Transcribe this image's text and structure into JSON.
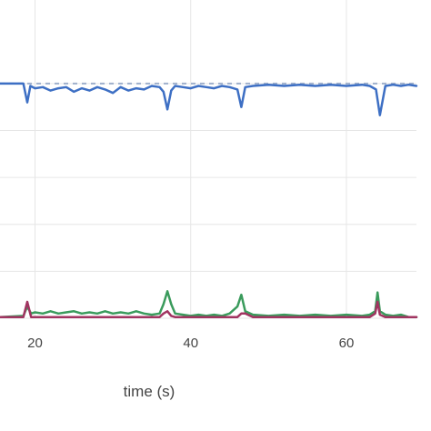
{
  "chart_data": {
    "type": "line",
    "title": "",
    "xlabel": "time (s)",
    "ylabel": "",
    "xlim": [
      15.5,
      69
    ],
    "ylim": [
      0,
      1.05
    ],
    "x_ticks": [
      20,
      40,
      60
    ],
    "x_tick_labels": [
      "20",
      "40",
      "60"
    ],
    "y_gridlines": [
      0,
      0.2,
      0.4,
      0.6,
      0.8,
      1.0
    ],
    "grid": true,
    "legend": "none",
    "reference_line": {
      "y": 1.0,
      "color": "#9fb0cc",
      "style": "dashed"
    },
    "series": [
      {
        "color": "#3d6fc4",
        "x": [
          15.5,
          18.5,
          19.0,
          19.4,
          20.0,
          21.0,
          22.0,
          23.0,
          24.0,
          25.0,
          26.0,
          27.0,
          28.0,
          29.0,
          30.0,
          31.0,
          32.0,
          33.0,
          34.0,
          35.0,
          36.0,
          36.5,
          37.0,
          37.5,
          38.0,
          39.0,
          40.0,
          41.0,
          42.0,
          43.0,
          44.0,
          45.0,
          46.0,
          46.5,
          47.0,
          48.0,
          50.0,
          52.0,
          54.0,
          56.0,
          58.0,
          60.0,
          62.0,
          63.0,
          63.8,
          64.3,
          65.0,
          66.0,
          67.0,
          68.0,
          69.0
        ],
        "y": [
          1.0,
          1.0,
          0.92,
          0.99,
          0.98,
          0.985,
          0.97,
          0.98,
          0.985,
          0.965,
          0.98,
          0.97,
          0.985,
          0.975,
          0.96,
          0.985,
          0.97,
          0.98,
          0.975,
          0.99,
          0.985,
          0.965,
          0.89,
          0.97,
          0.99,
          0.985,
          0.98,
          0.99,
          0.985,
          0.98,
          0.99,
          0.985,
          0.975,
          0.9,
          0.985,
          0.99,
          0.995,
          0.99,
          0.995,
          0.99,
          0.995,
          0.99,
          0.995,
          0.99,
          0.975,
          0.865,
          0.99,
          0.995,
          0.99,
          0.995,
          0.99
        ]
      },
      {
        "color": "#3a9b5c",
        "x": [
          15.5,
          18.5,
          19.0,
          19.5,
          20.0,
          21.0,
          22.0,
          23.0,
          24.0,
          25.0,
          26.0,
          27.0,
          28.0,
          29.0,
          30.0,
          31.0,
          32.0,
          33.0,
          34.0,
          35.0,
          36.0,
          36.5,
          37.0,
          37.5,
          38.0,
          39.0,
          40.0,
          41.0,
          42.0,
          43.0,
          44.0,
          45.0,
          46.0,
          46.5,
          47.0,
          48.0,
          50.0,
          52.0,
          54.0,
          56.0,
          58.0,
          60.0,
          62.0,
          63.0,
          63.7,
          64.0,
          64.3,
          65.0,
          66.0,
          67.0,
          68.0,
          69.0
        ],
        "y": [
          0.005,
          0.01,
          0.05,
          0.02,
          0.025,
          0.02,
          0.03,
          0.02,
          0.025,
          0.03,
          0.02,
          0.025,
          0.02,
          0.03,
          0.02,
          0.025,
          0.02,
          0.03,
          0.02,
          0.015,
          0.02,
          0.06,
          0.115,
          0.06,
          0.02,
          0.015,
          0.01,
          0.015,
          0.01,
          0.015,
          0.01,
          0.02,
          0.05,
          0.1,
          0.03,
          0.015,
          0.01,
          0.015,
          0.01,
          0.015,
          0.01,
          0.015,
          0.01,
          0.015,
          0.03,
          0.11,
          0.03,
          0.015,
          0.01,
          0.015,
          0.005,
          0.005
        ]
      },
      {
        "color": "#a13461",
        "x": [
          15.5,
          18.5,
          19.0,
          19.5,
          20.0,
          22.0,
          24.0,
          26.0,
          28.0,
          30.0,
          32.0,
          34.0,
          36.0,
          36.5,
          37.0,
          37.5,
          38.0,
          40.0,
          42.0,
          44.0,
          46.0,
          46.5,
          47.0,
          48.0,
          50.0,
          52.0,
          54.0,
          56.0,
          58.0,
          60.0,
          62.0,
          63.0,
          63.7,
          64.0,
          64.3,
          65.0,
          67.0,
          69.0
        ],
        "y": [
          0.005,
          0.005,
          0.07,
          0.005,
          0.005,
          0.005,
          0.005,
          0.005,
          0.005,
          0.005,
          0.005,
          0.005,
          0.005,
          0.02,
          0.03,
          0.01,
          0.005,
          0.005,
          0.005,
          0.005,
          0.005,
          0.02,
          0.02,
          0.005,
          0.005,
          0.005,
          0.005,
          0.005,
          0.005,
          0.005,
          0.005,
          0.005,
          0.02,
          0.07,
          0.015,
          0.005,
          0.005,
          0.005
        ]
      }
    ]
  }
}
